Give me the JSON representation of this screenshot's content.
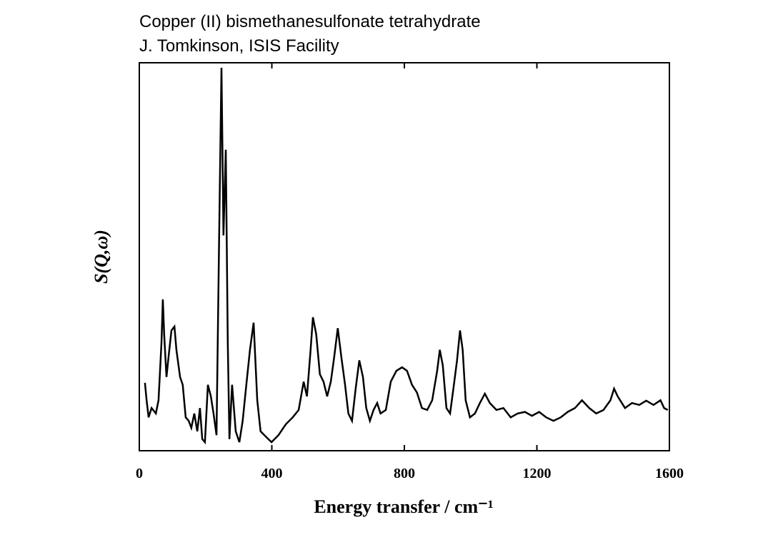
{
  "chart_data": {
    "type": "line",
    "title": "Copper (II) bismethanesulfonate tetrahydrate",
    "subtitle": "J. Tomkinson, ISIS Facility",
    "x_label": "Energy transfer / cm⁻¹",
    "y_label": "S(Q,ω)",
    "xlim": [
      0,
      1600
    ],
    "xticks": [
      0,
      400,
      800,
      1200,
      1600
    ],
    "ylim": [
      0,
      100
    ],
    "color": "#000000",
    "x": [
      17,
      22,
      28,
      37,
      50,
      58,
      67,
      71,
      75,
      82,
      88,
      97,
      106,
      112,
      123,
      131,
      140,
      149,
      157,
      166,
      175,
      183,
      190,
      198,
      207,
      216,
      224,
      233,
      241,
      248,
      254,
      261,
      267,
      272,
      280,
      291,
      302,
      312,
      323,
      334,
      345,
      356,
      366,
      381,
      399,
      420,
      442,
      463,
      481,
      496,
      506,
      517,
      524,
      534,
      545,
      556,
      567,
      578,
      588,
      599,
      610,
      621,
      631,
      642,
      653,
      664,
      675,
      685,
      696,
      707,
      718,
      728,
      744,
      759,
      776,
      793,
      808,
      823,
      838,
      853,
      869,
      884,
      899,
      907,
      916,
      927,
      938,
      948,
      959,
      968,
      976,
      985,
      998,
      1013,
      1028,
      1043,
      1058,
      1078,
      1099,
      1121,
      1142,
      1164,
      1185,
      1207,
      1228,
      1250,
      1272,
      1293,
      1315,
      1336,
      1358,
      1379,
      1401,
      1422,
      1433,
      1444,
      1466,
      1487,
      1509,
      1530,
      1552,
      1573,
      1584,
      1595
    ],
    "series": [
      {
        "values": [
          17.5,
          13,
          8.6,
          11,
          9.6,
          13,
          28,
          39,
          30,
          19,
          24,
          31,
          32,
          26,
          19,
          17,
          8.6,
          7.7,
          5.9,
          9.6,
          5,
          11,
          3,
          2.2,
          17,
          14,
          9.6,
          4,
          55.5,
          98.7,
          55.5,
          77.6,
          28,
          3,
          17,
          5,
          2.2,
          7.7,
          17,
          26,
          33,
          13,
          5,
          3.7,
          2.2,
          4,
          6.8,
          8.6,
          10.5,
          17.8,
          14,
          26,
          34.4,
          30,
          19.7,
          17.8,
          14,
          17.8,
          24,
          31.6,
          24,
          17,
          9.6,
          7.7,
          16,
          23.3,
          19,
          11,
          7.7,
          10.5,
          12.3,
          9.6,
          10.5,
          17.8,
          20.6,
          21.5,
          20.6,
          17,
          15,
          11,
          10.5,
          13,
          20.6,
          26,
          22,
          11,
          9.6,
          16,
          23.3,
          31,
          26,
          13,
          8.6,
          9.6,
          12.3,
          14.7,
          12.3,
          10.5,
          11,
          8.6,
          9.6,
          10,
          9,
          10,
          8.6,
          7.7,
          8.6,
          10,
          11,
          13,
          11,
          9.6,
          10.5,
          13,
          16,
          14,
          11,
          12.3,
          11.8,
          12.9,
          11.8,
          13,
          11,
          10.5
        ]
      }
    ]
  }
}
